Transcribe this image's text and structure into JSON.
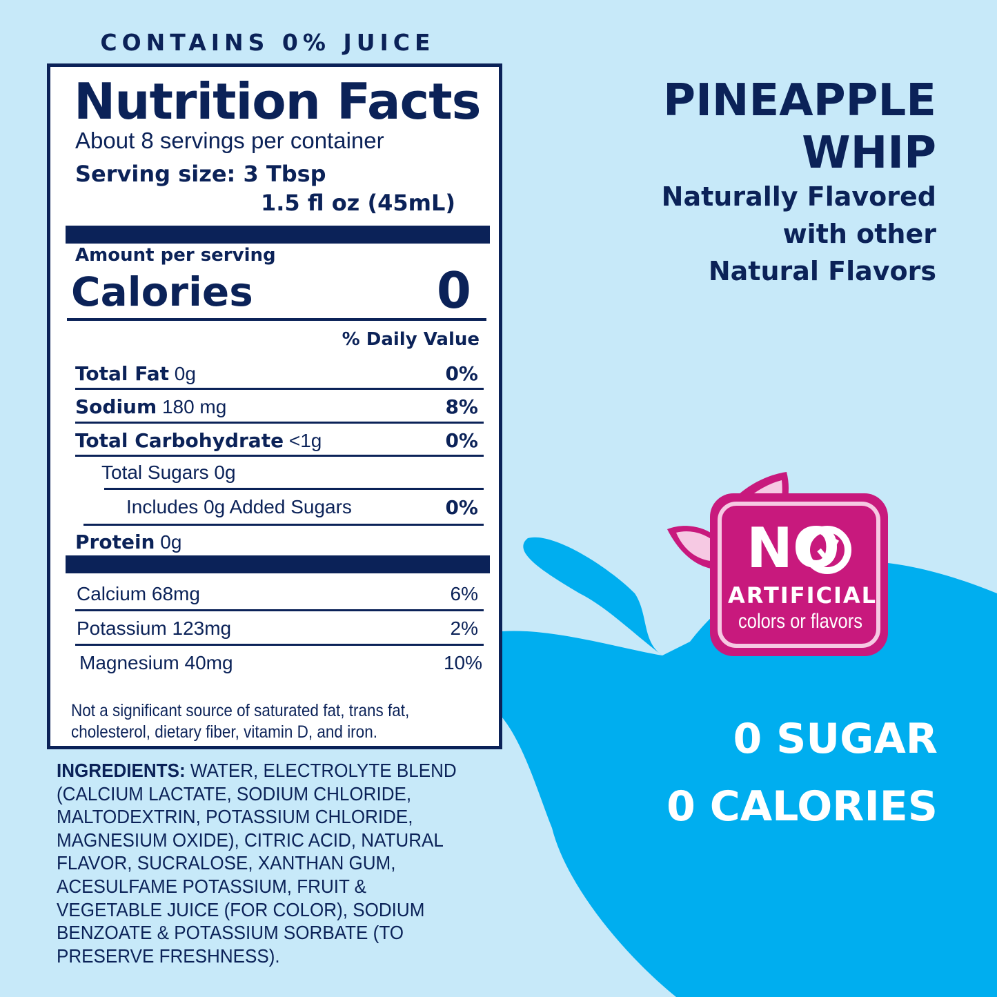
{
  "juice_claim": "CONTAINS 0% JUICE",
  "label": {
    "title": "Nutrition Facts",
    "servings": "About 8 servings per container",
    "serving_size_label": "Serving size:",
    "serving_size": "3 Tbsp",
    "serving_size_alt": "1.5 fl oz (45mL)",
    "amount_per_serving": "Amount per serving",
    "calories_label": "Calories",
    "calories_value": "0",
    "daily_value_header": "% Daily Value",
    "nutrients": [
      {
        "name": "Total Fat",
        "amount": "0g",
        "dv": "0%"
      },
      {
        "name": "Sodium",
        "amount": "180 mg",
        "dv": "8%"
      },
      {
        "name": "Total Carbohydrate",
        "amount": "<1g",
        "dv": "0%"
      },
      {
        "name": "",
        "amount": "Total Sugars 0g",
        "dv": ""
      },
      {
        "name": "",
        "amount": "Includes 0g Added Sugars",
        "dv": "0%"
      },
      {
        "name": "Protein",
        "amount": "0g",
        "dv": ""
      }
    ],
    "minerals": [
      {
        "amount": "Calcium 68mg",
        "dv": "6%"
      },
      {
        "amount": "Potassium 123mg",
        "dv": "2%"
      },
      {
        "amount": "Magnesium 40mg",
        "dv": "10%"
      }
    ],
    "footnote": "Not a significant source of saturated fat, trans fat, cholesterol, dietary fiber, vitamin D, and iron."
  },
  "ingredients": {
    "label": "INGREDIENTS:",
    "text": "WATER, ELECTROLYTE BLEND (CALCIUM LACTATE, SODIUM CHLORIDE, MALTODEXTRIN, POTASSIUM CHLORIDE, MAGNESIUM OXIDE), CITRIC ACID, NATURAL FLAVOR, SUCRALOSE, XANTHAN GUM, ACESULFAME POTASSIUM, FRUIT & VEGETABLE JUICE (FOR COLOR), SODIUM BENZOATE & POTASSIUM SORBATE (TO PRESERVE  FRESHNESS)."
  },
  "product": {
    "name_line1": "PINEAPPLE",
    "name_line2": "WHIP",
    "flavor_line1": "Naturally Flavored",
    "flavor_line2": "with other",
    "flavor_line3": "Natural Flavors"
  },
  "badge": {
    "line1": "NO",
    "line2": "ARTIFICIAL",
    "line3": "colors or flavors",
    "icons": [
      "leaf-icon",
      "checkmark-icon"
    ]
  },
  "claims": {
    "line1": "0 SUGAR",
    "line2": "0 CALORIES"
  },
  "colors": {
    "navy": "#0b2258",
    "background": "#c7e9f9",
    "splash": "#00aeef",
    "magenta": "#c8197d",
    "pink": "#f6c9e3"
  }
}
